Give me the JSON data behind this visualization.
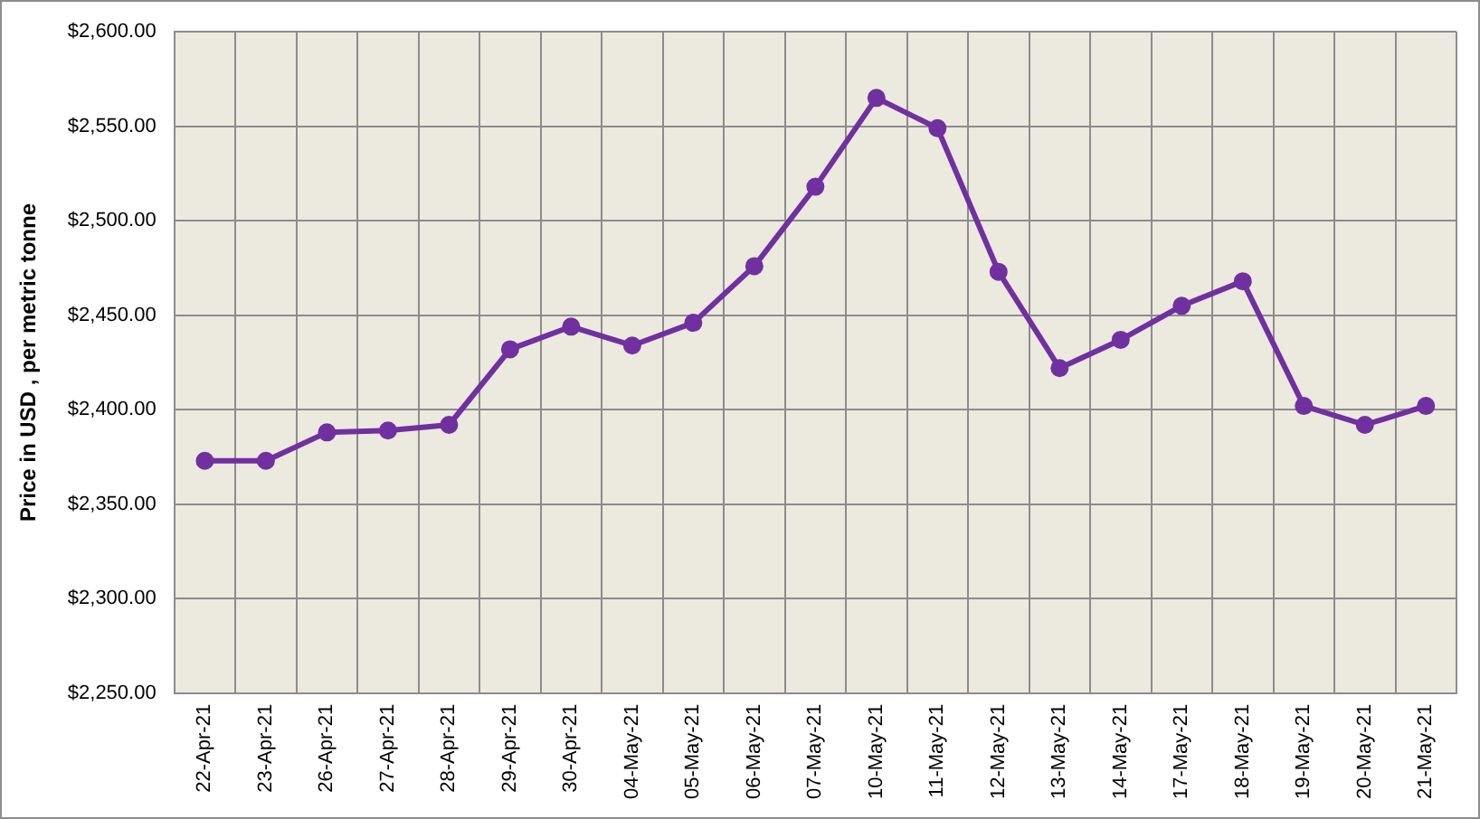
{
  "chart_data": {
    "type": "line",
    "ylabel": "Price in USD , per metric tonne",
    "categories": [
      "22-Apr-21",
      "23-Apr-21",
      "26-Apr-21",
      "27-Apr-21",
      "28-Apr-21",
      "29-Apr-21",
      "30-Apr-21",
      "04-May-21",
      "05-May-21",
      "06-May-21",
      "07-May-21",
      "10-May-21",
      "11-May-21",
      "12-May-21",
      "13-May-21",
      "14-May-21",
      "17-May-21",
      "18-May-21",
      "19-May-21",
      "20-May-21",
      "21-May-21"
    ],
    "series": [
      {
        "color": "#7030a0",
        "values": [
          2373,
          2373,
          2388,
          2389,
          2392,
          2432,
          2444,
          2434,
          2446,
          2476,
          2518,
          2565,
          2549,
          2473,
          2422,
          2437,
          2455,
          2468,
          2402,
          2392,
          2402
        ]
      }
    ],
    "ylim": [
      2250,
      2600
    ],
    "yticks": [
      {
        "value": 2250,
        "label": "$2,250.00"
      },
      {
        "value": 2300,
        "label": "$2,300.00"
      },
      {
        "value": 2350,
        "label": "$2,350.00"
      },
      {
        "value": 2400,
        "label": "$2,400.00"
      },
      {
        "value": 2450,
        "label": "$2,450.00"
      },
      {
        "value": 2500,
        "label": "$2,500.00"
      },
      {
        "value": 2550,
        "label": "$2,550.00"
      },
      {
        "value": 2600,
        "label": "$2,600.00"
      }
    ],
    "grid": true,
    "legend": false,
    "marker": "circle",
    "line_style": "solid"
  }
}
